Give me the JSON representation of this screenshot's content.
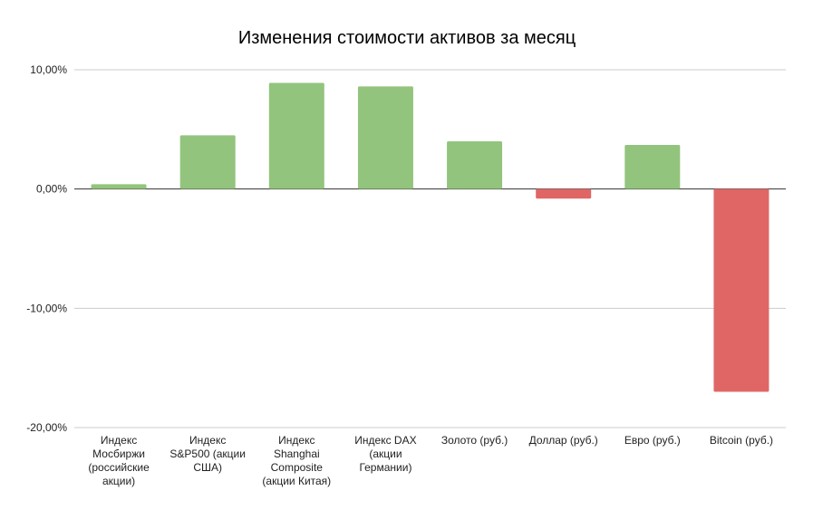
{
  "chart_data": {
    "type": "bar",
    "title": "Изменения стоимости активов за месяц",
    "xlabel": "",
    "ylabel": "",
    "categories": [
      [
        "Индекс",
        "Мосбиржи",
        "(российские",
        "акции)"
      ],
      [
        "Индекс",
        "S&P500 (акции",
        "США)"
      ],
      [
        "Индекс",
        "Shanghai",
        "Composite",
        "(акции Китая)"
      ],
      [
        "Индекс DAX",
        "(акции",
        "Германии)"
      ],
      [
        "Золото (руб.)"
      ],
      [
        "Доллар (руб.)"
      ],
      [
        "Евро (руб.)"
      ],
      [
        "Bitcoin (руб.)"
      ]
    ],
    "values": [
      0.4,
      4.5,
      8.9,
      8.6,
      4.0,
      -0.8,
      3.7,
      -17.0
    ],
    "ylim": [
      -20,
      10
    ],
    "yticks": [
      {
        "value": 10,
        "label": "10,00%"
      },
      {
        "value": 0,
        "label": "0,00%"
      },
      {
        "value": -10,
        "label": "-10,00%"
      },
      {
        "value": -20,
        "label": "-20,00%"
      }
    ],
    "grid": true,
    "legend": "none",
    "colors": {
      "positive": "#93c47d",
      "negative": "#e06666",
      "grid": "#cccccc",
      "zero_line": "#333333"
    }
  }
}
